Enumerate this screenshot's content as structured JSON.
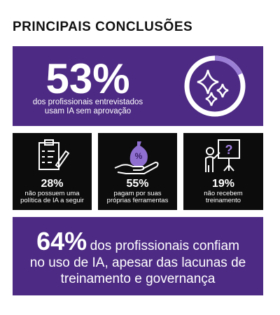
{
  "header": {
    "title": "PRINCIPAIS CONCLUSÕES"
  },
  "hero": {
    "stat": "53%",
    "lines": [
      "dos profissionais entrevistados",
      "usam IA sem aprovação"
    ]
  },
  "cards": [
    {
      "stat": "28%",
      "lines": [
        "não possuem uma",
        "política de IA a seguir"
      ]
    },
    {
      "stat": "55%",
      "lines": [
        "pagam por suas",
        "próprias ferramentas"
      ]
    },
    {
      "stat": "19%",
      "lines": [
        "não recebem",
        "treinamento"
      ]
    }
  ],
  "footer": {
    "stat": "64%",
    "lines": [
      "dos profissionais confiam",
      "no uso de IA, apesar das lacunas de",
      "treinamento e governança"
    ]
  }
}
